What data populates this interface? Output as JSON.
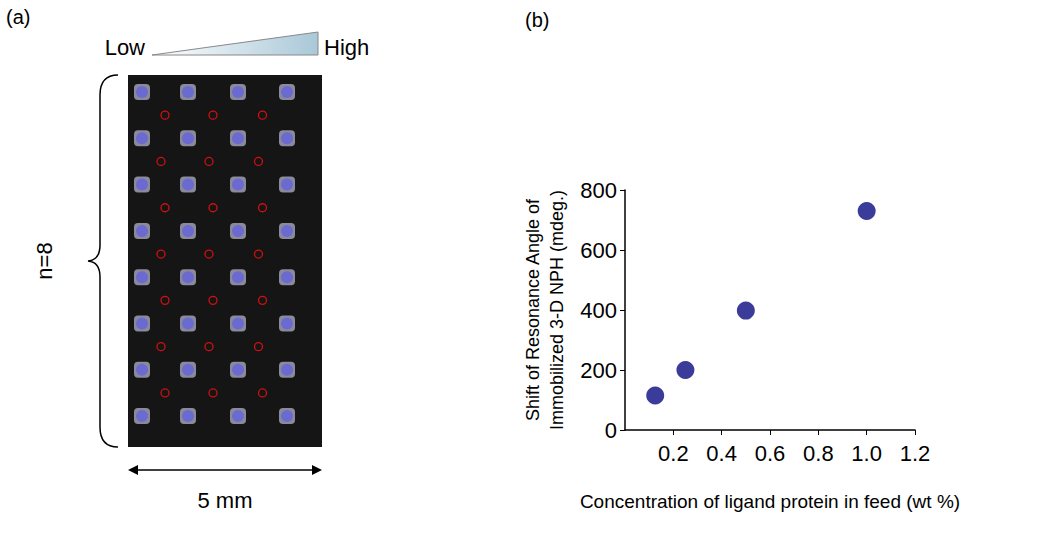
{
  "panel_a": {
    "label": "(a)",
    "scale_low": "Low",
    "scale_high": "High",
    "rows": "n=8",
    "width": "5 mm"
  },
  "chart_data": {
    "type": "scatter",
    "title": "(b)",
    "x_label": "Concentration of ligand protein in feed (wt %)",
    "y_label": "Shift of Resonance Angle of Immobilized 3-D NPH (mdeg.)",
    "x": [
      0.125,
      0.25,
      0.5,
      1.0
    ],
    "values": [
      115,
      200,
      398,
      730
    ],
    "color": "#0a0a80",
    "marker": "circle",
    "xlim": [
      0,
      1.2
    ],
    "xticks": [
      0.2,
      0.4,
      0.6,
      0.8,
      {
        "value": 1,
        "label": "1.0"
      },
      1.2
    ],
    "ylim": [
      0,
      800
    ],
    "yticks": [
      0,
      200,
      400,
      600,
      800
    ],
    "grid": false
  }
}
